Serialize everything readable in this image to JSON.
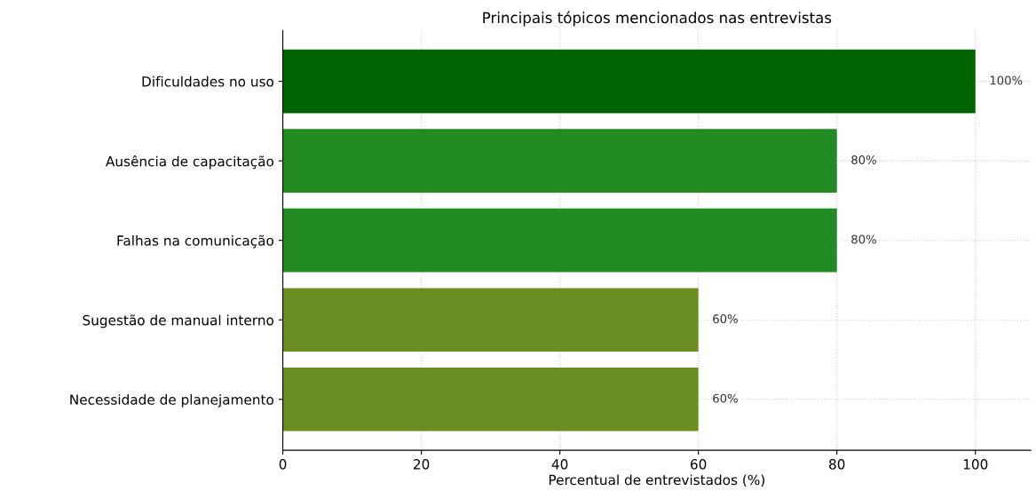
{
  "chart_data": {
    "type": "bar",
    "orientation": "horizontal",
    "title": "Principais tópicos mencionados nas entrevistas",
    "xlabel": "Percentual de entrevistados (%)",
    "categories": [
      "Dificuldades no uso",
      "Ausência de capacitação",
      "Falhas na comunicação",
      "Sugestão de manual interno",
      "Necessidade de planejamento"
    ],
    "values": [
      100,
      80,
      80,
      60,
      60
    ],
    "colors": [
      "#006400",
      "#228b22",
      "#228b22",
      "#6b8e23",
      "#6b8e23"
    ],
    "value_labels": [
      "100%",
      "80%",
      "80%",
      "60%",
      "60%"
    ],
    "xlim": [
      0,
      108
    ],
    "xticks": [
      0,
      20,
      40,
      60,
      80,
      100
    ],
    "grid": true
  }
}
